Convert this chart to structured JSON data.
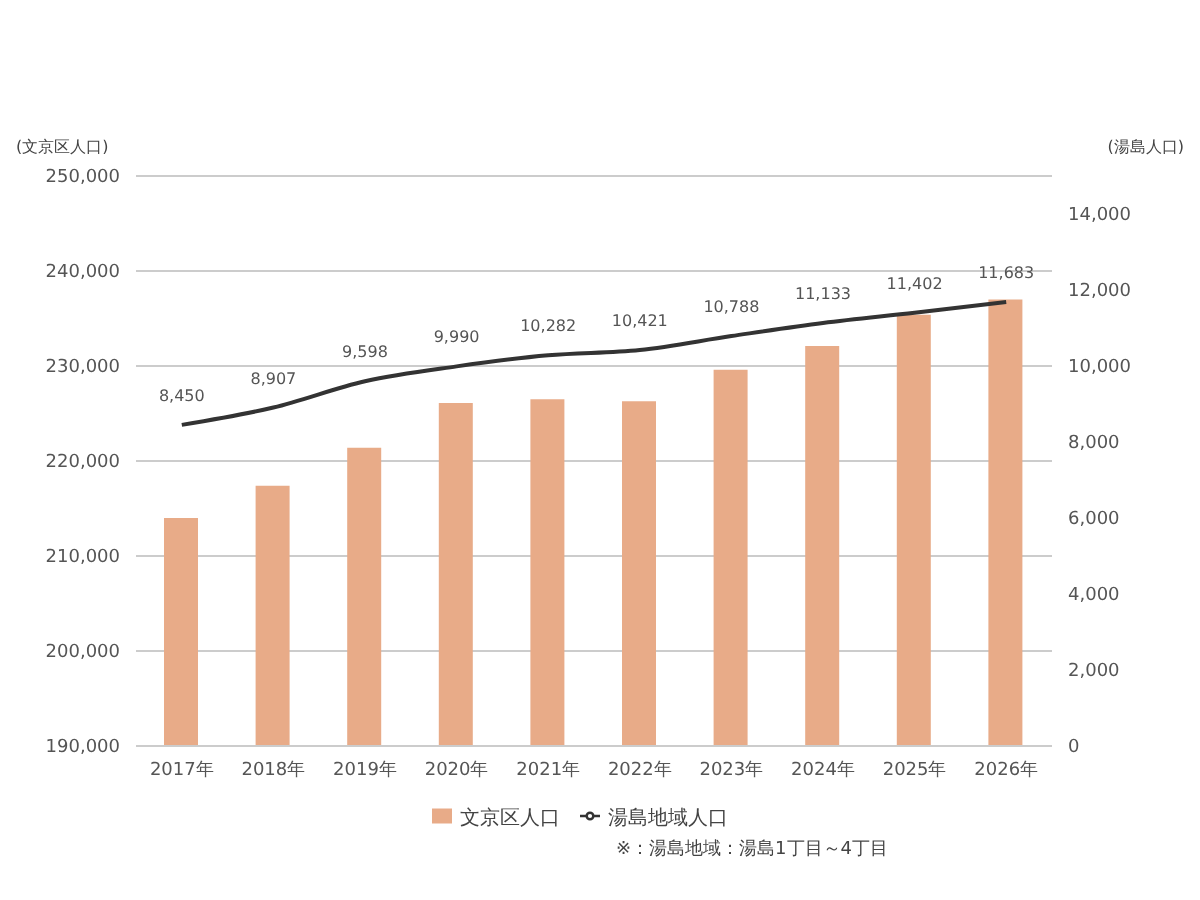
{
  "chart_data": {
    "type": "bar",
    "categories": [
      "2017年",
      "2018年",
      "2019年",
      "2020年",
      "2021年",
      "2022年",
      "2023年",
      "2024年",
      "2025年",
      "2026年"
    ],
    "series": [
      {
        "name": "文京区人口",
        "color": "#e8ab88",
        "values": [
          214000,
          217400,
          221400,
          226100,
          226500,
          226300,
          229600,
          232100,
          235400,
          237000
        ]
      },
      {
        "name": "湯島地域人口",
        "type": "line",
        "axis": "y2",
        "color": "#333333",
        "marker": "none",
        "values": [
          8450,
          8907,
          9598,
          9990,
          10282,
          10421,
          10788,
          11133,
          11402,
          11683
        ],
        "value_labels": [
          "8,450",
          "8,907",
          "9,598",
          "9,990",
          "10,282",
          "10,421",
          "10,788",
          "11,133",
          "11,402",
          "11,683"
        ]
      }
    ],
    "ylabel": "(文京区人口)",
    "y2label": "(湯島人口)",
    "ylim": [
      190000,
      250000
    ],
    "yticks": [
      {
        "value": 190000,
        "label": "190,000"
      },
      {
        "value": 200000,
        "label": "200,000"
      },
      {
        "value": 210000,
        "label": "210,000"
      },
      {
        "value": 220000,
        "label": "220,000"
      },
      {
        "value": 230000,
        "label": "230,000"
      },
      {
        "value": 240000,
        "label": "240,000"
      },
      {
        "value": 250000,
        "label": "250,000"
      }
    ],
    "y2lim": [
      0,
      15000
    ],
    "y2ticks": [
      0,
      {
        "value": 2000,
        "label": "2,000"
      },
      {
        "value": 4000,
        "label": "4,000"
      },
      {
        "value": 6000,
        "label": "6,000"
      },
      {
        "value": 8000,
        "label": "8,000"
      },
      {
        "value": 10000,
        "label": "10,000"
      },
      {
        "value": 12000,
        "label": "12,000"
      },
      {
        "value": 14000,
        "label": "14,000"
      }
    ],
    "grid": "y",
    "legend": "bottom",
    "annotations": [
      "※：湯島地域：湯島1丁目～4丁目"
    ]
  }
}
